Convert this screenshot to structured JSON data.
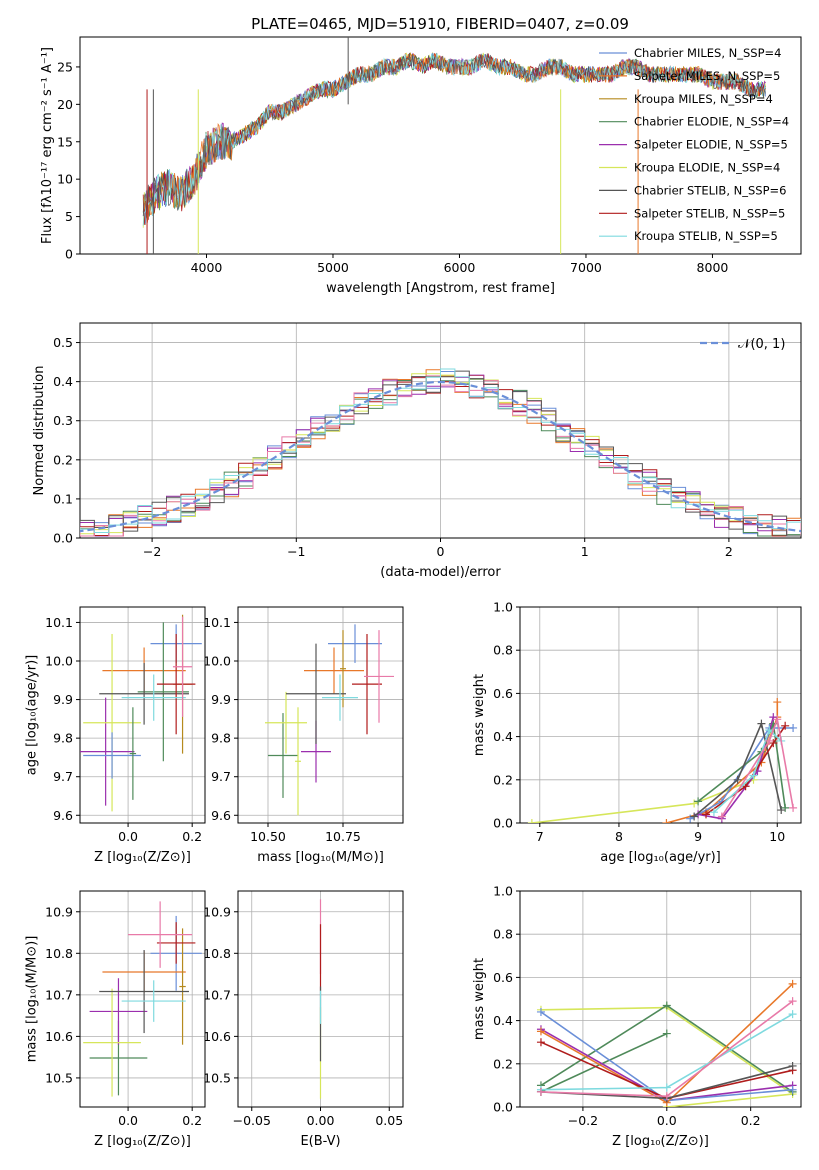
{
  "colors": {
    "chab_miles": "#6a8fd8",
    "salp_miles": "#e8782a",
    "krou_miles": "#b58a1e",
    "chab_elodie": "#4f8a5a",
    "salp_elodie": "#9b2fae",
    "krou_elodie": "#d6e65a",
    "chab_stelib": "#555555",
    "salp_stelib": "#b01c1c",
    "krou_stelib": "#7fdadf",
    "pink": "#e87aa8"
  },
  "chart_data": [
    {
      "id": "spectrum",
      "type": "line",
      "title": "PLATE=0465, MJD=51910, FIBERID=0407, z=0.09",
      "xlabel": "wavelength [Angstrom, rest frame]",
      "ylabel": "Flux [fλ10⁻¹⁷ erg cm⁻² s⁻¹ A⁻¹]",
      "xlim": [
        3000,
        8700
      ],
      "ylim": [
        0,
        29
      ],
      "xticks": [
        "4000",
        "5000",
        "6000",
        "7000",
        "8000"
      ],
      "xtick_values": [
        4000,
        5000,
        6000,
        7000,
        8000
      ],
      "yticks": [
        "0",
        "5",
        "10",
        "15",
        "20",
        "25"
      ],
      "ytick_values": [
        0,
        5,
        10,
        15,
        20,
        25
      ],
      "grid": false,
      "legend_position": "upper-right",
      "legend": [
        {
          "name": "Chabrier MILES, N_SSP=4",
          "color_key": "chab_miles"
        },
        {
          "name": "Salpeter MILES, N_SSP=5",
          "color_key": "salp_miles"
        },
        {
          "name": "Kroupa MILES, N_SSP=4",
          "color_key": "krou_miles"
        },
        {
          "name": "Chabrier ELODIE, N_SSP=4",
          "color_key": "chab_elodie"
        },
        {
          "name": "Salpeter ELODIE, N_SSP=5",
          "color_key": "salp_elodie"
        },
        {
          "name": "Kroupa ELODIE, N_SSP=4",
          "color_key": "krou_elodie"
        },
        {
          "name": "Chabrier STELIB, N_SSP=6",
          "color_key": "chab_stelib"
        },
        {
          "name": "Salpeter STELIB, N_SSP=5",
          "color_key": "salp_stelib"
        },
        {
          "name": "Kroupa STELIB, N_SSP=5",
          "color_key": "krou_stelib"
        }
      ],
      "x": [
        3500,
        3600,
        3700,
        3800,
        3900,
        4000,
        4100,
        4200,
        4300,
        4400,
        4500,
        4600,
        4700,
        4800,
        4900,
        5000,
        5100,
        5200,
        5300,
        5400,
        5500,
        5600,
        5700,
        5800,
        5900,
        6000,
        6100,
        6200,
        6300,
        6400,
        6500,
        6600,
        6700,
        6800,
        6900,
        7000,
        7100,
        7200,
        7300,
        7400,
        7500,
        7600,
        7700,
        7800,
        7900,
        8000,
        8100,
        8200,
        8300,
        8400
      ],
      "y": [
        6,
        8,
        9,
        8,
        10,
        14,
        15,
        15,
        16,
        17,
        19,
        19,
        20,
        21,
        22,
        22,
        23,
        24,
        24,
        25,
        25,
        26,
        25,
        26,
        25,
        25,
        25,
        26,
        25,
        25,
        24,
        24,
        25,
        25,
        24,
        24,
        24,
        24,
        25,
        25,
        24,
        24,
        24,
        24,
        24,
        23,
        23,
        23,
        22,
        22
      ]
    },
    {
      "id": "residuals",
      "type": "histogram",
      "xlabel": "(data-model)/error",
      "ylabel": "Normed distribution",
      "xlim": [
        -2.5,
        2.5
      ],
      "ylim": [
        0,
        0.55
      ],
      "xticks": [
        "−2",
        "−1",
        "0",
        "1",
        "2"
      ],
      "xtick_values": [
        -2,
        -1,
        0,
        1,
        2
      ],
      "yticks": [
        "0.0",
        "0.1",
        "0.2",
        "0.3",
        "0.4",
        "0.5"
      ],
      "ytick_values": [
        0,
        0.1,
        0.2,
        0.3,
        0.4,
        0.5
      ],
      "grid": true,
      "legend_position": "upper-right",
      "legend": [
        {
          "name": "𝒩(0, 1)",
          "color_key": "chab_miles"
        }
      ],
      "bin_width": 0.1,
      "bin_start": -2.5,
      "curve": "gaussian(0,1)"
    },
    {
      "id": "age_vs_Z",
      "type": "scatter",
      "xlabel": "Z [log₁₀(Z/Z⊙)]",
      "ylabel": "age  [log₁₀(age/yr)]",
      "xlim": [
        -0.15,
        0.24
      ],
      "ylim": [
        9.58,
        10.14
      ],
      "xticks": [
        "0.0",
        "0.2"
      ],
      "xtick_values": [
        0,
        0.2
      ],
      "yticks": [
        "9.6",
        "9.7",
        "9.8",
        "9.9",
        "10.0",
        "10.1"
      ],
      "ytick_values": [
        9.6,
        9.7,
        9.8,
        9.9,
        10.0,
        10.1
      ],
      "grid": true,
      "points": [
        {
          "color_key": "chab_miles",
          "x": 0.15,
          "y": 10.045,
          "xerr": 0.08,
          "yerr": 0.05
        },
        {
          "color_key": "salp_miles",
          "x": 0.05,
          "y": 9.975,
          "xerr": 0.13,
          "yerr": 0.06
        },
        {
          "color_key": "krou_miles",
          "x": 0.17,
          "y": 9.94,
          "xerr": 0.03,
          "yerr": 0.18
        },
        {
          "color_key": "chab_elodie",
          "x": 0.11,
          "y": 9.92,
          "xerr": 0.08,
          "yerr": 0.18
        },
        {
          "color_key": "salp_elodie",
          "x": -0.07,
          "y": 9.765,
          "xerr": 0.09,
          "yerr": 0.14
        },
        {
          "color_key": "krou_elodie",
          "x": -0.05,
          "y": 9.84,
          "xerr": 0.09,
          "yerr": 0.23
        },
        {
          "color_key": "chab_stelib",
          "x": 0.05,
          "y": 9.915,
          "xerr": 0.14,
          "yerr": 0.08
        },
        {
          "color_key": "salp_stelib",
          "x": 0.15,
          "y": 9.94,
          "xerr": 0.06,
          "yerr": 0.13
        },
        {
          "color_key": "krou_stelib",
          "x": 0.08,
          "y": 9.905,
          "xerr": 0.1,
          "yerr": 0.06
        },
        {
          "color_key": "pink",
          "x": 0.17,
          "y": 9.985,
          "xerr": 0.03,
          "yerr": 0.13
        },
        {
          "color_key": "chab_miles",
          "x": -0.05,
          "y": 9.755,
          "xerr": 0.09,
          "yerr": 0.06
        },
        {
          "color_key": "chab_elodie",
          "x": 0.015,
          "y": 9.76,
          "xerr": 0.01,
          "yerr": 0.12
        }
      ]
    },
    {
      "id": "age_vs_mass",
      "type": "scatter",
      "xlabel": "mass [log₁₀(M/M⊙)]",
      "ylabel": "",
      "xlim": [
        10.4,
        10.95
      ],
      "ylim": [
        9.58,
        10.14
      ],
      "xticks": [
        "10.50",
        "10.75"
      ],
      "xtick_values": [
        10.5,
        10.75
      ],
      "yticks": [
        "9.6",
        "9.7",
        "9.8",
        "9.9",
        "10.0",
        "10.1"
      ],
      "ytick_values": [
        9.6,
        9.7,
        9.8,
        9.9,
        10.0,
        10.1
      ],
      "grid": true,
      "points": [
        {
          "color_key": "chab_miles",
          "x": 10.79,
          "y": 10.045,
          "xerr": 0.09,
          "yerr": 0.05
        },
        {
          "color_key": "salp_miles",
          "x": 10.72,
          "y": 9.975,
          "xerr": 0.1,
          "yerr": 0.06
        },
        {
          "color_key": "krou_miles",
          "x": 10.75,
          "y": 9.98,
          "xerr": 0.01,
          "yerr": 0.1
        },
        {
          "color_key": "chab_elodie",
          "x": 10.55,
          "y": 9.755,
          "xerr": 0.05,
          "yerr": 0.11
        },
        {
          "color_key": "salp_elodie",
          "x": 10.66,
          "y": 9.765,
          "xerr": 0.05,
          "yerr": 0.08
        },
        {
          "color_key": "krou_elodie",
          "x": 10.56,
          "y": 9.84,
          "xerr": 0.07,
          "yerr": 0.08
        },
        {
          "color_key": "chab_stelib",
          "x": 10.66,
          "y": 9.915,
          "xerr": 0.1,
          "yerr": 0.13
        },
        {
          "color_key": "salp_stelib",
          "x": 10.83,
          "y": 9.94,
          "xerr": 0.05,
          "yerr": 0.13
        },
        {
          "color_key": "krou_stelib",
          "x": 10.74,
          "y": 9.905,
          "xerr": 0.06,
          "yerr": 0.06
        },
        {
          "color_key": "pink",
          "x": 10.87,
          "y": 9.96,
          "xerr": 0.05,
          "yerr": 0.12
        },
        {
          "color_key": "krou_elodie",
          "x": 10.6,
          "y": 9.74,
          "xerr": 0.01,
          "yerr": 0.14
        }
      ]
    },
    {
      "id": "sfh_age",
      "type": "line",
      "xlabel": "age  [log₁₀(age/yr)]",
      "ylabel": "mass weight",
      "xlim": [
        6.75,
        10.3
      ],
      "ylim": [
        0,
        1.0
      ],
      "xticks": [
        "7",
        "8",
        "9",
        "10"
      ],
      "xtick_values": [
        7,
        8,
        9,
        10
      ],
      "yticks": [
        "0.0",
        "0.2",
        "0.4",
        "0.6",
        "0.8",
        "1.0"
      ],
      "ytick_values": [
        0,
        0.2,
        0.4,
        0.6,
        0.8,
        1.0
      ],
      "grid": true,
      "series": [
        {
          "color_key": "krou_elodie",
          "x": [
            6.9,
            8.95,
            9.7,
            9.95
          ],
          "y": [
            0.0,
            0.09,
            0.2,
            0.46
          ]
        },
        {
          "color_key": "salp_miles",
          "x": [
            8.6,
            9.1,
            9.8,
            10.0,
            10.0
          ],
          "y": [
            0.0,
            0.05,
            0.28,
            0.49,
            0.56
          ]
        },
        {
          "color_key": "chab_miles",
          "x": [
            8.9,
            9.3,
            9.9,
            10.2
          ],
          "y": [
            0.02,
            0.1,
            0.44,
            0.44
          ]
        },
        {
          "color_key": "chab_elodie",
          "x": [
            9.0,
            9.8,
            9.95,
            10.1
          ],
          "y": [
            0.1,
            0.33,
            0.46,
            0.07
          ]
        },
        {
          "color_key": "salp_elodie",
          "x": [
            9.0,
            9.3,
            9.75,
            9.95
          ],
          "y": [
            0.04,
            0.02,
            0.24,
            0.49
          ]
        },
        {
          "color_key": "chab_stelib",
          "x": [
            8.95,
            9.5,
            9.8,
            10.05
          ],
          "y": [
            0.03,
            0.2,
            0.46,
            0.06
          ]
        },
        {
          "color_key": "salp_stelib",
          "x": [
            9.1,
            9.6,
            9.95,
            10.1
          ],
          "y": [
            0.04,
            0.17,
            0.37,
            0.45
          ]
        },
        {
          "color_key": "krou_stelib",
          "x": [
            9.2,
            9.7,
            9.9,
            10.05
          ],
          "y": [
            0.05,
            0.22,
            0.43,
            0.38
          ]
        },
        {
          "color_key": "pink",
          "x": [
            9.3,
            9.9,
            10.0,
            10.2
          ],
          "y": [
            0.03,
            0.38,
            0.48,
            0.07
          ]
        }
      ]
    },
    {
      "id": "mass_vs_Z",
      "type": "scatter",
      "xlabel": "Z [log₁₀(Z/Z⊙)]",
      "ylabel": "mass [log₁₀(M/M⊙)]",
      "xlim": [
        -0.15,
        0.24
      ],
      "ylim": [
        10.43,
        10.95
      ],
      "xticks": [
        "0.0",
        "0.2"
      ],
      "xtick_values": [
        0,
        0.2
      ],
      "yticks": [
        "10.5",
        "10.6",
        "10.7",
        "10.8",
        "10.9"
      ],
      "ytick_values": [
        10.5,
        10.6,
        10.7,
        10.8,
        10.9
      ],
      "grid": true,
      "points": [
        {
          "color_key": "chab_miles",
          "x": 0.15,
          "y": 10.8,
          "xerr": 0.08,
          "yerr": 0.09
        },
        {
          "color_key": "salp_miles",
          "x": 0.05,
          "y": 10.755,
          "xerr": 0.13,
          "yerr": 0.05
        },
        {
          "color_key": "krou_miles",
          "x": 0.17,
          "y": 10.72,
          "xerr": 0.01,
          "yerr": 0.14
        },
        {
          "color_key": "chab_elodie",
          "x": -0.03,
          "y": 10.548,
          "xerr": 0.09,
          "yerr": 0.09
        },
        {
          "color_key": "salp_elodie",
          "x": -0.03,
          "y": 10.66,
          "xerr": 0.09,
          "yerr": 0.08
        },
        {
          "color_key": "krou_elodie",
          "x": -0.05,
          "y": 10.585,
          "xerr": 0.09,
          "yerr": 0.13
        },
        {
          "color_key": "chab_stelib",
          "x": 0.05,
          "y": 10.708,
          "xerr": 0.14,
          "yerr": 0.1
        },
        {
          "color_key": "salp_stelib",
          "x": 0.15,
          "y": 10.825,
          "xerr": 0.06,
          "yerr": 0.05
        },
        {
          "color_key": "krou_stelib",
          "x": 0.08,
          "y": 10.685,
          "xerr": 0.1,
          "yerr": 0.05
        },
        {
          "color_key": "pink",
          "x": 0.1,
          "y": 10.845,
          "xerr": 0.1,
          "yerr": 0.08
        }
      ]
    },
    {
      "id": "mass_vs_EBV",
      "type": "scatter",
      "xlabel": "E(B-V)",
      "ylabel": "",
      "xlim": [
        -0.06,
        0.06
      ],
      "ylim": [
        10.43,
        10.95
      ],
      "xticks": [
        "−0.05",
        "0.00",
        "0.05"
      ],
      "xtick_values": [
        -0.05,
        0,
        0.05
      ],
      "yticks": [
        "10.5",
        "10.6",
        "10.7",
        "10.8",
        "10.9"
      ],
      "ytick_values": [
        10.5,
        10.6,
        10.7,
        10.8,
        10.9
      ],
      "grid": true,
      "points": [
        {
          "color_key": "krou_elodie",
          "x": 0.0,
          "y": 10.56,
          "xerr": 0,
          "yerr": 0.11
        },
        {
          "color_key": "pink",
          "x": 0.0,
          "y": 10.84,
          "xerr": 0,
          "yerr": 0.09
        },
        {
          "color_key": "salp_stelib",
          "x": 0.0,
          "y": 10.79,
          "xerr": 0,
          "yerr": 0.08
        },
        {
          "color_key": "chab_stelib",
          "x": 0.0,
          "y": 10.63,
          "xerr": 0,
          "yerr": 0.09
        },
        {
          "color_key": "krou_stelib",
          "x": 0.0,
          "y": 10.67,
          "xerr": 0,
          "yerr": 0.04
        }
      ]
    },
    {
      "id": "sfh_Z",
      "type": "line",
      "xlabel": "Z [log₁₀(Z/Z⊙)]",
      "ylabel": "mass weight",
      "xlim": [
        -0.35,
        0.32
      ],
      "ylim": [
        0,
        1.0
      ],
      "xticks": [
        "−0.2",
        "0.0",
        "0.2"
      ],
      "xtick_values": [
        -0.2,
        0,
        0.2
      ],
      "yticks": [
        "0.0",
        "0.2",
        "0.4",
        "0.6",
        "0.8",
        "1.0"
      ],
      "ytick_values": [
        0,
        0.2,
        0.4,
        0.6,
        0.8,
        1.0
      ],
      "grid": true,
      "series": [
        {
          "color_key": "krou_elodie",
          "x": [
            -0.3,
            0.0,
            0.3,
            0.0
          ],
          "y": [
            0.45,
            0.46,
            0.06,
            0.0
          ]
        },
        {
          "color_key": "chab_elodie",
          "x": [
            -0.3,
            0.0,
            0.3
          ],
          "y": [
            0.1,
            0.47,
            0.07
          ]
        },
        {
          "color_key": "chab_elodie",
          "x": [
            -0.3,
            0.0
          ],
          "y": [
            0.07,
            0.34
          ]
        },
        {
          "color_key": "salp_elodie",
          "x": [
            -0.3,
            0.0,
            0.3
          ],
          "y": [
            0.36,
            0.03,
            0.1
          ]
        },
        {
          "color_key": "chab_miles",
          "x": [
            -0.3,
            0.0,
            0.3
          ],
          "y": [
            0.44,
            0.03,
            0.08
          ]
        },
        {
          "color_key": "salp_miles",
          "x": [
            -0.3,
            0.0,
            0.3
          ],
          "y": [
            0.35,
            0.02,
            0.57
          ]
        },
        {
          "color_key": "salp_stelib",
          "x": [
            -0.3,
            0.0,
            0.3
          ],
          "y": [
            0.3,
            0.04,
            0.17
          ]
        },
        {
          "color_key": "chab_stelib",
          "x": [
            -0.3,
            0.0,
            0.3
          ],
          "y": [
            0.07,
            0.04,
            0.19
          ]
        },
        {
          "color_key": "krou_stelib",
          "x": [
            -0.3,
            0.0,
            0.3
          ],
          "y": [
            0.08,
            0.09,
            0.43
          ]
        },
        {
          "color_key": "pink",
          "x": [
            -0.3,
            0.0,
            0.3
          ],
          "y": [
            0.07,
            0.05,
            0.49
          ]
        }
      ]
    }
  ]
}
